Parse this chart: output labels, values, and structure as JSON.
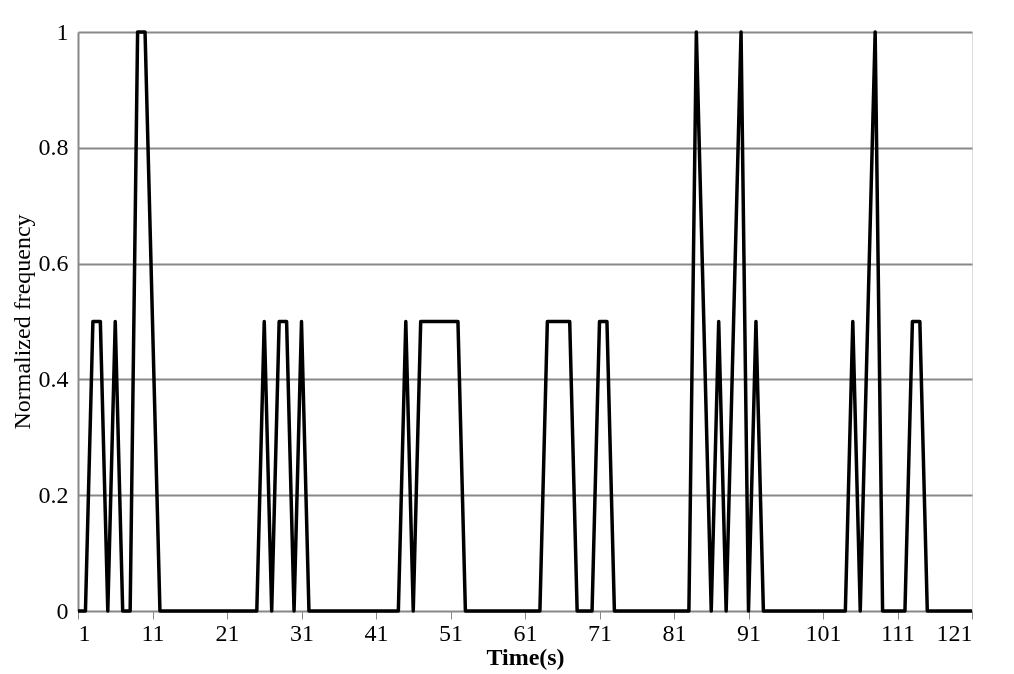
{
  "chart_data": {
    "type": "line",
    "xlabel": "Time(s)",
    "ylabel": "Normalized frequency",
    "x": [
      1,
      2,
      3,
      4,
      5,
      6,
      7,
      8,
      9,
      10,
      11,
      12,
      13,
      14,
      15,
      16,
      17,
      18,
      19,
      20,
      21,
      22,
      23,
      24,
      25,
      26,
      27,
      28,
      29,
      30,
      31,
      32,
      33,
      34,
      35,
      36,
      37,
      38,
      39,
      40,
      41,
      42,
      43,
      44,
      45,
      46,
      47,
      48,
      49,
      50,
      51,
      52,
      53,
      54,
      55,
      56,
      57,
      58,
      59,
      60,
      61,
      62,
      63,
      64,
      65,
      66,
      67,
      68,
      69,
      70,
      71,
      72,
      73,
      74,
      75,
      76,
      77,
      78,
      79,
      80,
      81,
      82,
      83,
      84,
      85,
      86,
      87,
      88,
      89,
      90,
      91,
      92,
      93,
      94,
      95,
      96,
      97,
      98,
      99,
      100,
      101,
      102,
      103,
      104,
      105,
      106,
      107,
      108,
      109,
      110,
      111,
      112,
      113,
      114,
      115,
      116,
      117,
      118,
      119,
      120,
      121
    ],
    "series": [
      {
        "color": "#000000",
        "values": [
          0,
          0,
          0.5,
          0.5,
          0,
          0.5,
          0,
          0,
          1,
          1,
          0.5,
          0,
          0,
          0,
          0,
          0,
          0,
          0,
          0,
          0,
          0,
          0,
          0,
          0,
          0,
          0.5,
          0,
          0.5,
          0.5,
          0,
          0.5,
          0,
          0,
          0,
          0,
          0,
          0,
          0,
          0,
          0,
          0,
          0,
          0,
          0,
          0.5,
          0,
          0.5,
          0.5,
          0.5,
          0.5,
          0.5,
          0.5,
          0,
          0,
          0,
          0,
          0,
          0,
          0,
          0,
          0,
          0,
          0,
          0.5,
          0.5,
          0.5,
          0.5,
          0,
          0,
          0,
          0.5,
          0.5,
          0,
          0,
          0,
          0,
          0,
          0,
          0,
          0,
          0,
          0,
          0,
          1,
          0.5,
          0,
          0.5,
          0,
          0.5,
          1,
          0,
          0.5,
          0,
          0,
          0,
          0,
          0,
          0,
          0,
          0,
          0,
          0,
          0,
          0,
          0.5,
          0,
          0.5,
          1,
          0,
          0,
          0,
          0,
          0.5,
          0.5,
          0,
          0,
          0,
          0,
          0,
          0,
          0
        ]
      }
    ],
    "xlim": [
      1,
      121
    ],
    "xticks": [
      1,
      11,
      21,
      31,
      41,
      51,
      61,
      71,
      81,
      91,
      101,
      111,
      121
    ],
    "ylim": [
      0,
      1
    ],
    "yticks": [
      0,
      0.2,
      0.4,
      0.6,
      0.8,
      1
    ],
    "grid": "y",
    "marker": "none",
    "line_style": "solid"
  }
}
